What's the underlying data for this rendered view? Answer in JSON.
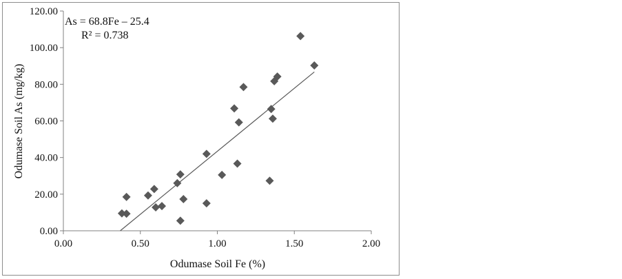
{
  "chart_data": {
    "type": "scatter",
    "xlabel": "Odumase Soil Fe (%)",
    "ylabel": "Odumase Soil As (mg/kg)",
    "xlim": [
      0,
      2.0
    ],
    "ylim": [
      0,
      120
    ],
    "x_ticks": [
      "0.00",
      "0.50",
      "1.00",
      "1.50",
      "2.00"
    ],
    "y_ticks": [
      "0.00",
      "20.00",
      "40.00",
      "60.00",
      "80.00",
      "100.00",
      "120.00"
    ],
    "grid": false,
    "marker": "diamond",
    "marker_color": "#595959",
    "trendline_color": "#595959",
    "points": [
      {
        "x": 0.38,
        "y": 9.5
      },
      {
        "x": 0.41,
        "y": 18.5
      },
      {
        "x": 0.41,
        "y": 9.3
      },
      {
        "x": 0.55,
        "y": 19.3
      },
      {
        "x": 0.59,
        "y": 22.8
      },
      {
        "x": 0.6,
        "y": 12.8
      },
      {
        "x": 0.64,
        "y": 13.5
      },
      {
        "x": 0.74,
        "y": 26.0
      },
      {
        "x": 0.76,
        "y": 30.8
      },
      {
        "x": 0.76,
        "y": 5.5
      },
      {
        "x": 0.78,
        "y": 17.3
      },
      {
        "x": 0.93,
        "y": 42.0
      },
      {
        "x": 0.93,
        "y": 15.0
      },
      {
        "x": 1.03,
        "y": 30.5
      },
      {
        "x": 1.11,
        "y": 66.8
      },
      {
        "x": 1.13,
        "y": 36.7
      },
      {
        "x": 1.14,
        "y": 59.2
      },
      {
        "x": 1.17,
        "y": 78.5
      },
      {
        "x": 1.34,
        "y": 27.3
      },
      {
        "x": 1.35,
        "y": 66.5
      },
      {
        "x": 1.36,
        "y": 61.2
      },
      {
        "x": 1.37,
        "y": 81.7
      },
      {
        "x": 1.39,
        "y": 84.2
      },
      {
        "x": 1.54,
        "y": 106.3
      },
      {
        "x": 1.63,
        "y": 90.3
      }
    ],
    "trendline": {
      "slope": 68.8,
      "intercept": -25.4,
      "x_from": 0.37,
      "x_to": 1.63
    },
    "annotation": {
      "equation": "As = 68.8Fe – 25.4",
      "r_squared": "R² = 0.738"
    }
  }
}
